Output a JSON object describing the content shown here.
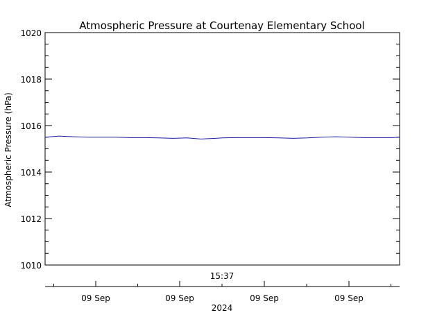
{
  "chart_data": {
    "type": "line",
    "title": "Atmospheric Pressure at Courtenay Elementary School",
    "xlabel": "",
    "ylabel": "Atmospheric Pressure (hPa)",
    "ylim": [
      1010,
      1020
    ],
    "yticks": [
      "1010",
      "1012",
      "1014",
      "1016",
      "1018",
      "1020"
    ],
    "time_label": "15:37",
    "x_ticks": [
      "09 Sep",
      "09 Sep",
      "09 Sep",
      "09 Sep"
    ],
    "year_label": "2024",
    "grid": false,
    "line_color": "#1a1aa0",
    "series": [
      {
        "x": [
          0,
          4,
          8,
          12,
          16,
          20,
          24,
          28,
          32,
          36,
          40,
          44,
          48,
          50,
          54,
          58,
          62,
          66,
          70,
          74,
          78,
          82,
          86,
          90,
          94,
          98,
          100
        ],
        "values": [
          1015.5,
          1015.55,
          1015.52,
          1015.5,
          1015.5,
          1015.5,
          1015.48,
          1015.48,
          1015.47,
          1015.45,
          1015.47,
          1015.42,
          1015.45,
          1015.47,
          1015.48,
          1015.48,
          1015.48,
          1015.47,
          1015.45,
          1015.47,
          1015.5,
          1015.52,
          1015.5,
          1015.48,
          1015.48,
          1015.48,
          1015.5
        ]
      }
    ]
  }
}
